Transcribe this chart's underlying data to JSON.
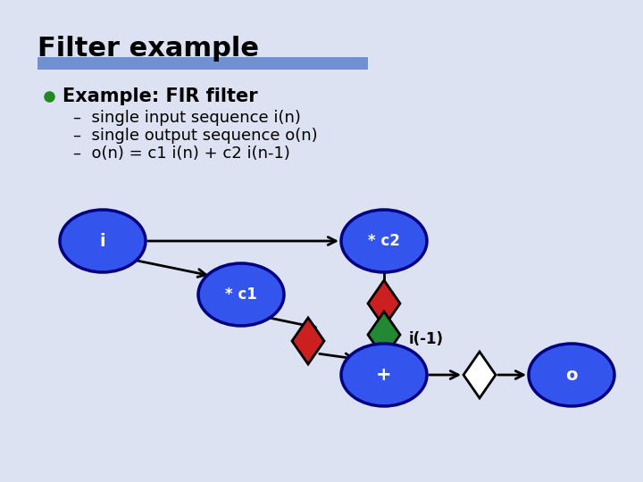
{
  "title": "Filter example",
  "title_fontsize": 22,
  "title_fontweight": "bold",
  "title_color": "#000000",
  "bg_color": "#dde2f2",
  "separator_color": "#7090d0",
  "bullet_color": "#228822",
  "bullet_text": "Example: FIR filter",
  "bullet_fontsize": 15,
  "subbullets": [
    "single input sequence i(n)",
    "single output sequence o(n)",
    "o(n) = c1 i(n) + c2 i(n-1)"
  ],
  "subbullet_fontsize": 13,
  "node_color": "#3355ee",
  "node_edge_color": "#000080",
  "node_text_color": "#ffffff",
  "i_minus1_label": "i(-1)",
  "red_color": "#cc2020",
  "green_color": "#228833",
  "white_color": "#ffffff",
  "arrow_color": "#000000"
}
